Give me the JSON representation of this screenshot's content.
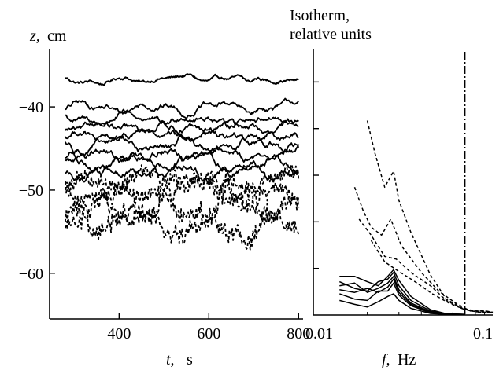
{
  "chart_data": [
    {
      "type": "line",
      "title": "",
      "ylabel_var": "z,",
      "ylabel_unit": "cm",
      "xlabel_var": "t,",
      "xlabel_unit": "s",
      "xlim": [
        245,
        810
      ],
      "ylim": [
        -65.5,
        -33
      ],
      "xticks": [
        400,
        600,
        800
      ],
      "xtick_labels": [
        "400",
        "600",
        "800"
      ],
      "yticks": [
        -40,
        -50,
        -60
      ],
      "ytick_labels": [
        "−40",
        "−50",
        "−60"
      ],
      "x_start": 280,
      "x_end": 800,
      "series": [
        {
          "style": "solid",
          "offset": -36.6,
          "amp": 0.55
        },
        {
          "style": "solid",
          "offset": -40.1,
          "amp": 0.8
        },
        {
          "style": "solid",
          "offset": -41.5,
          "amp": 0.85
        },
        {
          "style": "solid",
          "offset": -42.6,
          "amp": 0.9
        },
        {
          "style": "solid",
          "offset": -43.6,
          "amp": 0.95
        },
        {
          "style": "solid",
          "offset": -44.6,
          "amp": 1.0
        },
        {
          "style": "solid",
          "offset": -45.6,
          "amp": 1.0
        },
        {
          "style": "solid",
          "offset": -46.8,
          "amp": 1.05
        },
        {
          "style": "solid",
          "offset": -47.9,
          "amp": 1.05
        },
        {
          "style": "dashed",
          "offset": -49.0,
          "amp": 1.4
        },
        {
          "style": "dashed",
          "offset": -50.6,
          "amp": 1.6
        },
        {
          "style": "dashed",
          "offset": -52.3,
          "amp": 1.7
        },
        {
          "style": "dashed",
          "offset": -54.2,
          "amp": 1.7
        }
      ]
    },
    {
      "type": "line",
      "title_lines": [
        "Isotherm,",
        "relative units"
      ],
      "xlabel_var": "f,",
      "xlabel_unit": "Hz",
      "xscale": "log",
      "xlim": [
        0.01,
        0.1
      ],
      "xtick_labels": [
        "0.01",
        "0.1"
      ],
      "ylim": [
        0,
        10
      ],
      "yticks": [
        1.75,
        3.5,
        5.25,
        7.0,
        8.75
      ],
      "cutoff_f": 0.07,
      "series": [
        {
          "style": "dashed",
          "points": [
            [
              0.02,
              7.3
            ],
            [
              0.022,
              6.1
            ],
            [
              0.025,
              4.8
            ],
            [
              0.028,
              5.4
            ],
            [
              0.03,
              4.3
            ],
            [
              0.035,
              3.1
            ],
            [
              0.045,
              1.5
            ],
            [
              0.055,
              0.6
            ],
            [
              0.068,
              0.25
            ],
            [
              0.08,
              0.15
            ],
            [
              0.092,
              0.15
            ],
            [
              0.1,
              0.1
            ]
          ]
        },
        {
          "style": "dashed",
          "points": [
            [
              0.017,
              4.8
            ],
            [
              0.019,
              3.9
            ],
            [
              0.021,
              3.3
            ],
            [
              0.024,
              3.0
            ],
            [
              0.027,
              3.6
            ],
            [
              0.031,
              2.6
            ],
            [
              0.04,
              1.6
            ],
            [
              0.05,
              0.9
            ],
            [
              0.062,
              0.45
            ],
            [
              0.075,
              0.15
            ],
            [
              0.09,
              0.15
            ],
            [
              0.1,
              0.1
            ]
          ]
        },
        {
          "style": "dashed",
          "points": [
            [
              0.018,
              3.6
            ],
            [
              0.021,
              3.0
            ],
            [
              0.025,
              2.2
            ],
            [
              0.029,
              2.1
            ],
            [
              0.035,
              1.6
            ],
            [
              0.045,
              1.1
            ],
            [
              0.055,
              0.55
            ],
            [
              0.067,
              0.25
            ],
            [
              0.08,
              0.12
            ],
            [
              0.1,
              0.1
            ]
          ]
        },
        {
          "style": "dashed",
          "points": [
            [
              0.021,
              2.8
            ],
            [
              0.025,
              2.0
            ],
            [
              0.029,
              1.7
            ],
            [
              0.036,
              1.3
            ],
            [
              0.046,
              0.8
            ],
            [
              0.057,
              0.45
            ],
            [
              0.07,
              0.2
            ],
            [
              0.085,
              0.1
            ],
            [
              0.1,
              0.1
            ]
          ]
        },
        {
          "style": "solid",
          "points": [
            [
              0.014,
              1.45
            ],
            [
              0.017,
              1.45
            ],
            [
              0.02,
              1.25
            ],
            [
              0.023,
              1.1
            ],
            [
              0.026,
              1.45
            ],
            [
              0.028,
              1.7
            ],
            [
              0.03,
              1.3
            ],
            [
              0.035,
              0.7
            ],
            [
              0.045,
              0.2
            ],
            [
              0.055,
              0.05
            ],
            [
              0.07,
              0.02
            ]
          ]
        },
        {
          "style": "solid",
          "points": [
            [
              0.014,
              1.25
            ],
            [
              0.017,
              1.0
            ],
            [
              0.02,
              0.9
            ],
            [
              0.023,
              1.25
            ],
            [
              0.026,
              1.35
            ],
            [
              0.028,
              1.6
            ],
            [
              0.03,
              1.1
            ],
            [
              0.035,
              0.55
            ],
            [
              0.045,
              0.15
            ],
            [
              0.055,
              0.04
            ],
            [
              0.07,
              0.02
            ]
          ]
        },
        {
          "style": "solid",
          "points": [
            [
              0.014,
              1.1
            ],
            [
              0.017,
              1.2
            ],
            [
              0.02,
              0.85
            ],
            [
              0.023,
              1.0
            ],
            [
              0.026,
              1.2
            ],
            [
              0.028,
              1.45
            ],
            [
              0.03,
              0.95
            ],
            [
              0.035,
              0.45
            ],
            [
              0.045,
              0.12
            ],
            [
              0.055,
              0.04
            ],
            [
              0.07,
              0.02
            ]
          ]
        },
        {
          "style": "solid",
          "points": [
            [
              0.014,
              0.95
            ],
            [
              0.017,
              0.85
            ],
            [
              0.02,
              1.0
            ],
            [
              0.023,
              0.85
            ],
            [
              0.026,
              1.05
            ],
            [
              0.028,
              1.35
            ],
            [
              0.03,
              0.85
            ],
            [
              0.035,
              0.4
            ],
            [
              0.045,
              0.1
            ],
            [
              0.055,
              0.03
            ],
            [
              0.07,
              0.02
            ]
          ]
        },
        {
          "style": "solid",
          "points": [
            [
              0.014,
              0.8
            ],
            [
              0.017,
              0.6
            ],
            [
              0.02,
              0.55
            ],
            [
              0.023,
              0.9
            ],
            [
              0.026,
              0.9
            ],
            [
              0.028,
              1.2
            ],
            [
              0.03,
              0.75
            ],
            [
              0.035,
              0.35
            ],
            [
              0.045,
              0.08
            ],
            [
              0.055,
              0.02
            ],
            [
              0.07,
              0.02
            ]
          ]
        },
        {
          "style": "solid",
          "points": [
            [
              0.014,
              0.55
            ],
            [
              0.017,
              0.4
            ],
            [
              0.02,
              0.3
            ],
            [
              0.023,
              0.5
            ],
            [
              0.026,
              0.7
            ],
            [
              0.028,
              0.8
            ],
            [
              0.03,
              0.55
            ],
            [
              0.035,
              0.25
            ],
            [
              0.045,
              0.06
            ],
            [
              0.055,
              0.02
            ],
            [
              0.07,
              0.02
            ]
          ]
        }
      ]
    }
  ]
}
